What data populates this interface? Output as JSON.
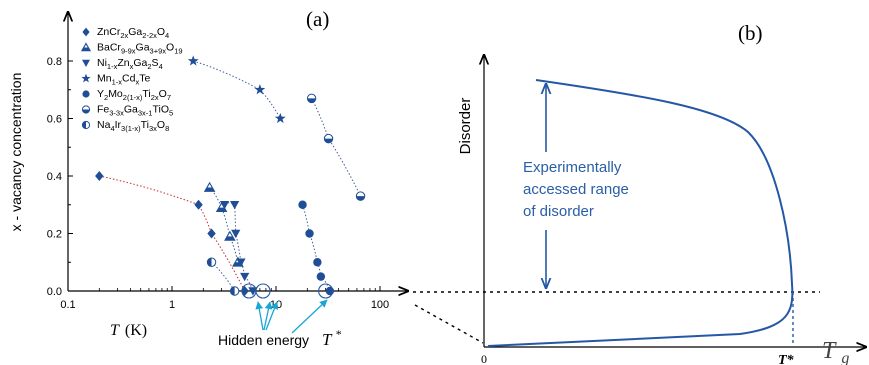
{
  "chart_data": [
    {
      "type": "scatter",
      "panel_label": "(a)",
      "ylabel": "x - vacancy concentration",
      "xlabel_symbol": "T",
      "xlabel_unit": "(K)",
      "xscale": "log",
      "xlim": [
        0.1,
        100
      ],
      "ylim": [
        0,
        0.85
      ],
      "x_ticks": [
        "0.1",
        "1",
        "10",
        "100"
      ],
      "y_ticks": [
        "0.0",
        "0.2",
        "0.4",
        "0.6",
        "0.8"
      ],
      "legend_placement": "top-left",
      "series": [
        {
          "name_parts": [
            [
              "ZnCr",
              ""
            ],
            [
              "2x",
              "sub"
            ],
            [
              "Ga",
              ""
            ],
            [
              "2-2x",
              "sub"
            ],
            [
              "O",
              ""
            ],
            [
              "4",
              "sub"
            ]
          ],
          "marker": "diamond",
          "points": [
            {
              "x": 0.2,
              "y": 0.4
            },
            {
              "x": 1.8,
              "y": 0.3
            },
            {
              "x": 2.4,
              "y": 0.2
            },
            {
              "x": 5.0,
              "y": 0.0
            }
          ]
        },
        {
          "name_parts": [
            [
              "BaCr",
              ""
            ],
            [
              "9-9x",
              "sub"
            ],
            [
              "Ga",
              ""
            ],
            [
              "3+9x",
              "sub"
            ],
            [
              "O",
              ""
            ],
            [
              "19",
              "sub"
            ]
          ],
          "marker": "triangle-up-half",
          "points": [
            {
              "x": 2.3,
              "y": 0.36
            },
            {
              "x": 3.0,
              "y": 0.29
            },
            {
              "x": 3.6,
              "y": 0.19
            },
            {
              "x": 4.3,
              "y": 0.1
            }
          ]
        },
        {
          "name_parts": [
            [
              "Ni",
              ""
            ],
            [
              "1-x",
              "sub"
            ],
            [
              "Zn",
              ""
            ],
            [
              "x",
              "sub"
            ],
            [
              "Ga",
              ""
            ],
            [
              "2",
              "sub"
            ],
            [
              "S",
              ""
            ],
            [
              "4",
              "sub"
            ]
          ],
          "marker": "triangle-down",
          "points": [
            {
              "x": 3.2,
              "y": 0.3
            },
            {
              "x": 4.0,
              "y": 0.3
            },
            {
              "x": 4.1,
              "y": 0.2
            },
            {
              "x": 4.6,
              "y": 0.1
            },
            {
              "x": 5.0,
              "y": 0.05
            },
            {
              "x": 6.0,
              "y": 0.0
            }
          ]
        },
        {
          "name_parts": [
            [
              "Mn",
              ""
            ],
            [
              "1-x",
              "sub"
            ],
            [
              "Cd",
              ""
            ],
            [
              "x",
              "sub"
            ],
            [
              "Te",
              ""
            ]
          ],
          "marker": "star",
          "points": [
            {
              "x": 1.6,
              "y": 0.8
            },
            {
              "x": 7.0,
              "y": 0.7
            },
            {
              "x": 11.0,
              "y": 0.6
            }
          ]
        },
        {
          "name_parts": [
            [
              "Y",
              ""
            ],
            [
              "2",
              "sub"
            ],
            [
              "Mo",
              ""
            ],
            [
              "2(1-x)",
              "sub"
            ],
            [
              "Ti",
              ""
            ],
            [
              "2x",
              "sub"
            ],
            [
              "O",
              ""
            ],
            [
              "7",
              "sub"
            ]
          ],
          "marker": "circle",
          "points": [
            {
              "x": 18.0,
              "y": 0.3
            },
            {
              "x": 21.0,
              "y": 0.2
            },
            {
              "x": 25.0,
              "y": 0.1
            },
            {
              "x": 27.0,
              "y": 0.05
            },
            {
              "x": 33.0,
              "y": 0.0
            }
          ]
        },
        {
          "name_parts": [
            [
              "Fe",
              ""
            ],
            [
              "3-3x",
              "sub"
            ],
            [
              "Ga",
              ""
            ],
            [
              "3x-1",
              "sub"
            ],
            [
              "TiO",
              ""
            ],
            [
              "5",
              "sub"
            ]
          ],
          "marker": "circle-half-h",
          "points": [
            {
              "x": 22.0,
              "y": 0.67
            },
            {
              "x": 32.0,
              "y": 0.53
            },
            {
              "x": 65.0,
              "y": 0.33
            }
          ]
        },
        {
          "name_parts": [
            [
              "Na",
              ""
            ],
            [
              "4",
              "sub"
            ],
            [
              "Ir",
              ""
            ],
            [
              "3(1-x)",
              "sub"
            ],
            [
              "Ti",
              ""
            ],
            [
              "3x",
              "sub"
            ],
            [
              "O",
              ""
            ],
            [
              "8",
              "sub"
            ]
          ],
          "marker": "circle-half-v",
          "points": [
            {
              "x": 2.4,
              "y": 0.1
            },
            {
              "x": 4.0,
              "y": 0.0
            }
          ]
        }
      ],
      "hidden_energy_label": "Hidden energy",
      "hidden_energy_symbol": "T",
      "hidden_energy_superscript": "*",
      "hidden_energy_circles_x": [
        5.5,
        7.5,
        30.0
      ]
    },
    {
      "type": "line",
      "panel_label": "(b)",
      "ylabel": "Disorder",
      "xlabel": "T",
      "xlabel_subscript": "g",
      "origin_label": "0",
      "tstar_label": "T*",
      "annotation_lines": [
        "Experimentally",
        "accessed range",
        "of disorder"
      ],
      "curve_color": "#2458a6"
    }
  ],
  "colors": {
    "marker": "#1f4e96",
    "dotted_line": "#3f5f99",
    "red_dotted": "#c03030",
    "cyan_arrow": "#1aa6d4",
    "annotation_text": "#2a5ea6",
    "axis": "#000000"
  }
}
